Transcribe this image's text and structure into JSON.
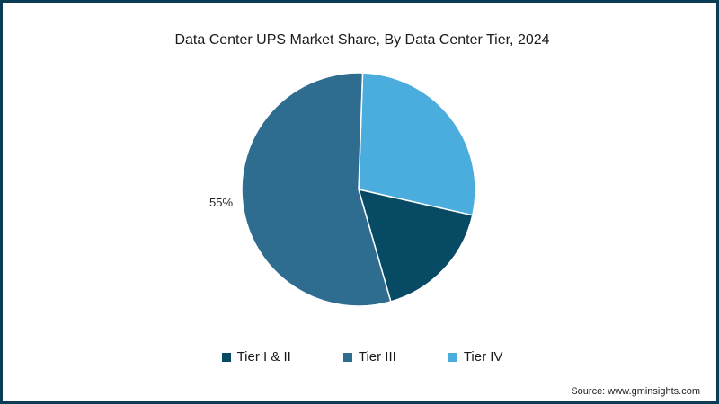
{
  "chart_data": {
    "type": "pie",
    "title": "Data Center UPS Market Share, By Data Center Tier, 2024",
    "slices": [
      {
        "name": "Tier I & II",
        "value": 17,
        "color": "#064a63"
      },
      {
        "name": "Tier III",
        "value": 55,
        "color": "#2f6d90",
        "label": "55%"
      },
      {
        "name": "Tier IV",
        "value": 28,
        "color": "#4badde"
      }
    ],
    "start_angle_deg": 2,
    "direction": "clockwise",
    "legend_position": "bottom"
  },
  "source": "Source: www.gminsights.com"
}
